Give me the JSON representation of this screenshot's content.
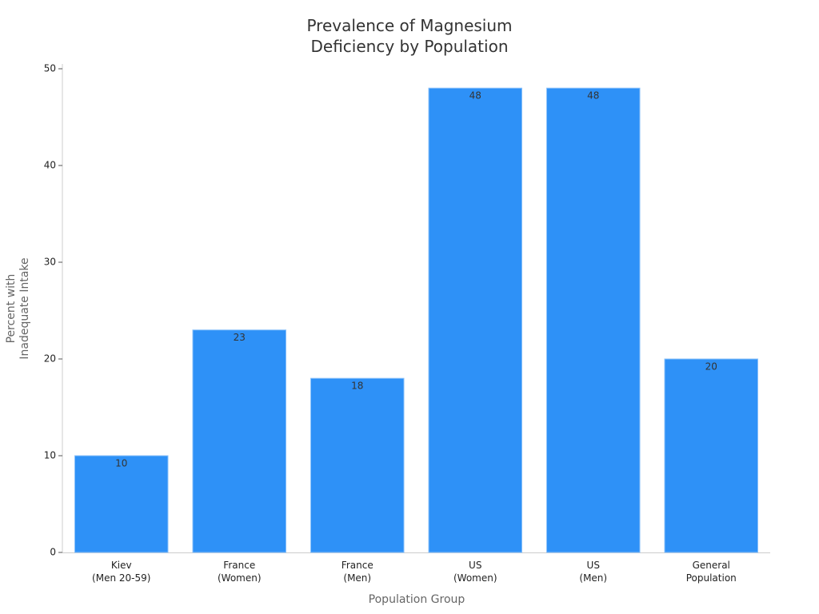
{
  "chart_data": {
    "type": "bar",
    "title": "Prevalence of Magnesium\nDeficiency by Population",
    "x_label": "Population Group",
    "y_label": "Percent with\nInadequate Intake",
    "categories": [
      "Kiev\n(Men 20-59)",
      "France\n(Women)",
      "France\n(Men)",
      "US\n(Women)",
      "US\n(Men)",
      "General\nPopulation"
    ],
    "values": [
      10,
      23,
      18,
      48,
      48,
      20
    ],
    "color": "#2e91f7",
    "ylim": [
      0,
      50
    ],
    "yticks": [
      0,
      10,
      20,
      30,
      40,
      50
    ],
    "grid": false
  }
}
